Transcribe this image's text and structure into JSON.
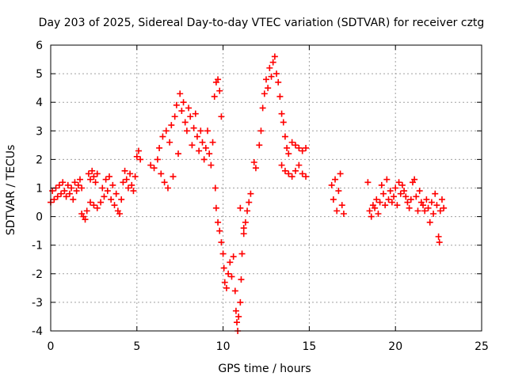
{
  "chart_data": {
    "type": "scatter",
    "title": "Day 203 of 2025, Sidereal Day-to-day VTEC variation (SDTVAR) for receiver cztg",
    "xlabel": "GPS time / hours",
    "ylabel": "SDTVAR / TECUs",
    "xlim": [
      0,
      25
    ],
    "ylim": [
      -4,
      6
    ],
    "x_ticks": [
      0,
      5,
      10,
      15,
      20,
      25
    ],
    "y_ticks": [
      -4,
      -3,
      -2,
      -1,
      0,
      1,
      2,
      3,
      4,
      5,
      6
    ],
    "grid": true,
    "marker": "+",
    "color": "#ff0000",
    "series": [
      {
        "name": "SDTVAR",
        "points": [
          [
            0.0,
            0.5
          ],
          [
            0.1,
            0.9
          ],
          [
            0.2,
            0.6
          ],
          [
            0.3,
            1.0
          ],
          [
            0.4,
            0.7
          ],
          [
            0.5,
            1.1
          ],
          [
            0.6,
            0.8
          ],
          [
            0.7,
            1.2
          ],
          [
            0.8,
            0.9
          ],
          [
            0.9,
            0.7
          ],
          [
            1.0,
            1.1
          ],
          [
            1.1,
            0.8
          ],
          [
            1.2,
            1.0
          ],
          [
            1.3,
            0.6
          ],
          [
            1.4,
            1.2
          ],
          [
            1.5,
            0.9
          ],
          [
            1.6,
            1.1
          ],
          [
            1.7,
            1.3
          ],
          [
            1.8,
            1.0
          ],
          [
            1.8,
            0.1
          ],
          [
            1.9,
            0.0
          ],
          [
            2.0,
            -0.1
          ],
          [
            2.1,
            0.2
          ],
          [
            2.2,
            1.5
          ],
          [
            2.3,
            1.3
          ],
          [
            2.4,
            1.6
          ],
          [
            2.5,
            1.4
          ],
          [
            2.6,
            1.2
          ],
          [
            2.7,
            1.5
          ],
          [
            2.3,
            0.5
          ],
          [
            2.5,
            0.4
          ],
          [
            2.7,
            0.3
          ],
          [
            2.9,
            0.5
          ],
          [
            3.0,
            1.0
          ],
          [
            3.1,
            0.7
          ],
          [
            3.2,
            1.3
          ],
          [
            3.3,
            0.9
          ],
          [
            3.4,
            1.4
          ],
          [
            3.5,
            0.6
          ],
          [
            3.6,
            1.1
          ],
          [
            3.7,
            0.4
          ],
          [
            3.8,
            0.8
          ],
          [
            3.9,
            0.2
          ],
          [
            4.0,
            0.1
          ],
          [
            4.1,
            0.6
          ],
          [
            4.2,
            1.2
          ],
          [
            4.3,
            1.6
          ],
          [
            4.4,
            1.3
          ],
          [
            4.5,
            1.0
          ],
          [
            4.6,
            1.5
          ],
          [
            4.7,
            1.1
          ],
          [
            4.8,
            0.9
          ],
          [
            4.9,
            1.4
          ],
          [
            5.0,
            2.1
          ],
          [
            5.1,
            2.3
          ],
          [
            5.2,
            2.0
          ],
          [
            5.8,
            1.8
          ],
          [
            6.0,
            1.7
          ],
          [
            6.2,
            2.0
          ],
          [
            6.3,
            2.4
          ],
          [
            6.4,
            1.5
          ],
          [
            6.5,
            2.8
          ],
          [
            6.6,
            1.2
          ],
          [
            6.7,
            3.0
          ],
          [
            6.8,
            1.0
          ],
          [
            6.9,
            2.6
          ],
          [
            7.0,
            3.2
          ],
          [
            7.1,
            1.4
          ],
          [
            7.2,
            3.5
          ],
          [
            7.3,
            3.9
          ],
          [
            7.4,
            2.2
          ],
          [
            7.5,
            4.3
          ],
          [
            7.6,
            3.7
          ],
          [
            7.7,
            4.0
          ],
          [
            7.8,
            3.3
          ],
          [
            7.9,
            3.0
          ],
          [
            8.0,
            3.8
          ],
          [
            8.1,
            3.5
          ],
          [
            8.2,
            2.5
          ],
          [
            8.3,
            3.1
          ],
          [
            8.4,
            3.6
          ],
          [
            8.5,
            2.8
          ],
          [
            8.6,
            2.3
          ],
          [
            8.7,
            3.0
          ],
          [
            8.8,
            2.6
          ],
          [
            8.9,
            2.0
          ],
          [
            9.0,
            2.4
          ],
          [
            9.1,
            3.0
          ],
          [
            9.2,
            2.2
          ],
          [
            9.3,
            1.8
          ],
          [
            9.4,
            2.6
          ],
          [
            9.5,
            4.2
          ],
          [
            9.6,
            4.7
          ],
          [
            9.7,
            4.8
          ],
          [
            9.8,
            4.4
          ],
          [
            9.9,
            3.5
          ],
          [
            9.55,
            1.0
          ],
          [
            9.6,
            0.3
          ],
          [
            9.7,
            -0.2
          ],
          [
            9.8,
            -0.5
          ],
          [
            9.9,
            -0.9
          ],
          [
            10.0,
            -1.3
          ],
          [
            10.05,
            -1.8
          ],
          [
            10.1,
            -2.3
          ],
          [
            10.2,
            -2.5
          ],
          [
            10.3,
            -2.0
          ],
          [
            10.4,
            -1.6
          ],
          [
            10.5,
            -2.1
          ],
          [
            10.6,
            -1.4
          ],
          [
            10.7,
            -2.6
          ],
          [
            10.75,
            -3.3
          ],
          [
            10.8,
            -3.7
          ],
          [
            10.85,
            -4.0
          ],
          [
            10.9,
            -3.5
          ],
          [
            11.0,
            -3.0
          ],
          [
            11.05,
            -2.2
          ],
          [
            11.1,
            -1.3
          ],
          [
            11.2,
            -0.6
          ],
          [
            11.3,
            -0.2
          ],
          [
            11.4,
            0.2
          ],
          [
            11.5,
            0.5
          ],
          [
            11.6,
            0.8
          ],
          [
            11.0,
            0.3
          ],
          [
            11.2,
            -0.4
          ],
          [
            11.8,
            1.9
          ],
          [
            11.9,
            1.7
          ],
          [
            12.1,
            2.5
          ],
          [
            12.2,
            3.0
          ],
          [
            12.3,
            3.8
          ],
          [
            12.4,
            4.3
          ],
          [
            12.5,
            4.8
          ],
          [
            12.6,
            4.5
          ],
          [
            12.7,
            5.2
          ],
          [
            12.8,
            4.9
          ],
          [
            12.9,
            5.4
          ],
          [
            13.0,
            5.6
          ],
          [
            13.1,
            5.0
          ],
          [
            13.2,
            4.7
          ],
          [
            13.3,
            4.2
          ],
          [
            13.4,
            3.6
          ],
          [
            13.5,
            3.3
          ],
          [
            13.6,
            2.8
          ],
          [
            13.7,
            2.4
          ],
          [
            13.8,
            2.2
          ],
          [
            13.4,
            1.8
          ],
          [
            13.6,
            1.6
          ],
          [
            13.8,
            1.5
          ],
          [
            14.0,
            1.4
          ],
          [
            14.2,
            1.6
          ],
          [
            14.4,
            1.8
          ],
          [
            14.6,
            1.5
          ],
          [
            14.8,
            1.4
          ],
          [
            14.0,
            2.6
          ],
          [
            14.2,
            2.5
          ],
          [
            14.4,
            2.4
          ],
          [
            14.6,
            2.3
          ],
          [
            14.8,
            2.4
          ],
          [
            16.3,
            1.1
          ],
          [
            16.4,
            0.6
          ],
          [
            16.5,
            1.3
          ],
          [
            16.6,
            0.2
          ],
          [
            16.7,
            0.9
          ],
          [
            16.8,
            1.5
          ],
          [
            16.9,
            0.4
          ],
          [
            17.0,
            0.1
          ],
          [
            18.4,
            1.2
          ],
          [
            18.5,
            0.2
          ],
          [
            18.6,
            0.0
          ],
          [
            18.7,
            0.4
          ],
          [
            18.8,
            0.3
          ],
          [
            18.9,
            0.6
          ],
          [
            19.0,
            0.1
          ],
          [
            19.1,
            0.5
          ],
          [
            19.2,
            1.1
          ],
          [
            19.3,
            0.8
          ],
          [
            19.4,
            0.4
          ],
          [
            19.5,
            1.3
          ],
          [
            19.6,
            0.6
          ],
          [
            19.7,
            0.9
          ],
          [
            19.8,
            0.5
          ],
          [
            19.9,
            0.7
          ],
          [
            20.0,
            1.0
          ],
          [
            20.1,
            0.4
          ],
          [
            20.2,
            1.2
          ],
          [
            20.3,
            0.8
          ],
          [
            20.4,
            1.1
          ],
          [
            20.5,
            0.9
          ],
          [
            20.6,
            0.7
          ],
          [
            20.7,
            0.5
          ],
          [
            20.8,
            0.3
          ],
          [
            20.9,
            0.6
          ],
          [
            21.0,
            1.2
          ],
          [
            21.1,
            1.3
          ],
          [
            21.2,
            0.7
          ],
          [
            21.3,
            0.2
          ],
          [
            21.4,
            0.9
          ],
          [
            21.5,
            0.5
          ],
          [
            21.6,
            0.4
          ],
          [
            21.7,
            0.2
          ],
          [
            21.8,
            0.6
          ],
          [
            21.9,
            0.3
          ],
          [
            22.0,
            -0.2
          ],
          [
            22.1,
            0.5
          ],
          [
            22.2,
            0.1
          ],
          [
            22.3,
            0.8
          ],
          [
            22.4,
            0.4
          ],
          [
            22.5,
            -0.7
          ],
          [
            22.55,
            -0.9
          ],
          [
            22.6,
            0.2
          ],
          [
            22.7,
            0.6
          ],
          [
            22.8,
            0.3
          ]
        ]
      }
    ]
  }
}
